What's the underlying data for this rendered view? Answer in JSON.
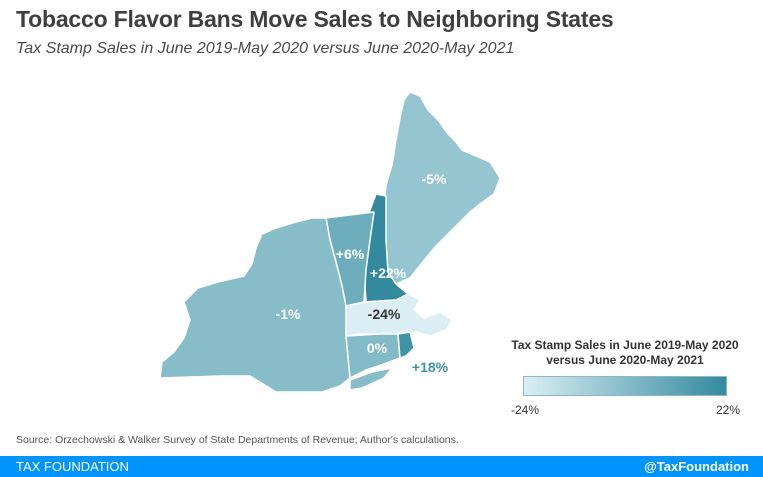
{
  "header": {
    "title": "Tobacco Flavor Bans Move Sales to Neighboring States",
    "subtitle": "Tax Stamp Sales in June 2019-May 2020 versus June 2020-May 2021"
  },
  "states": [
    {
      "key": "maine",
      "label": "-5%",
      "value": -5
    },
    {
      "key": "new-hampshire",
      "label": "+22%",
      "value": 22
    },
    {
      "key": "vermont",
      "label": "+6%",
      "value": 6
    },
    {
      "key": "new-york",
      "label": "-1%",
      "value": -1
    },
    {
      "key": "massachusetts",
      "label": "-24%",
      "value": -24
    },
    {
      "key": "connecticut",
      "label": "0%",
      "value": 0
    },
    {
      "key": "rhode-island",
      "label": "+18%",
      "value": 18
    }
  ],
  "legend": {
    "title": "Tax Stamp Sales in June 2019-May 2020 versus June 2020-May 2021",
    "min_label": "-24%",
    "max_label": "22%",
    "min": -24,
    "max": 22,
    "color_low": "#daeef3",
    "color_high": "#338a9f"
  },
  "source": "Source: Orzechowski & Walker Survey of State Departments of Revenue; Author's calculations.",
  "footer": {
    "brand": "TAX FOUNDATION",
    "handle": "@TaxFoundation",
    "color": "#0094ff"
  }
}
